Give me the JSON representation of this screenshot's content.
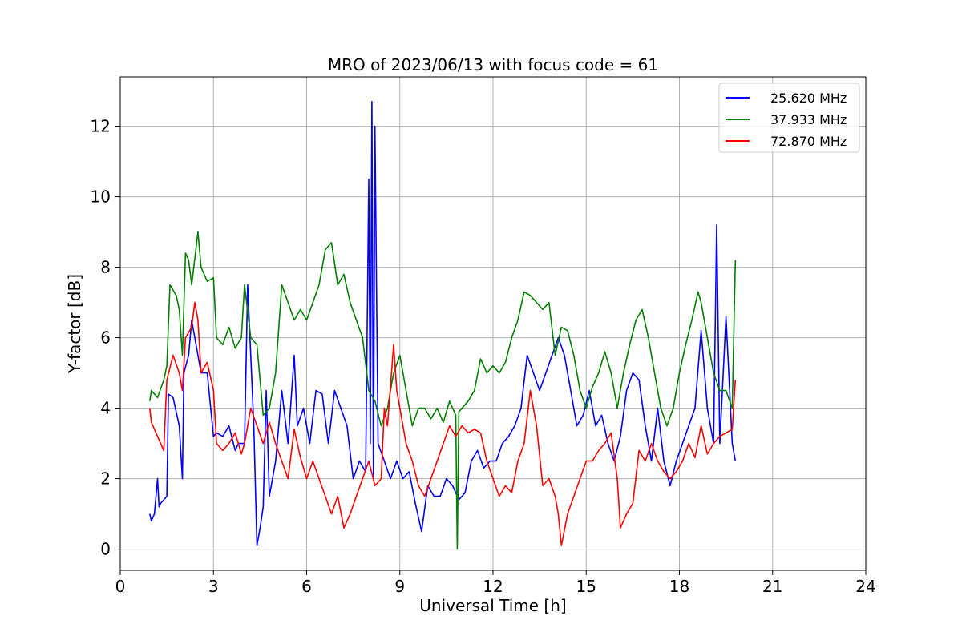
{
  "chart_data": {
    "type": "line",
    "title": "MRO of 2023/06/13 with focus code = 61",
    "xlabel": "Universal Time [h]",
    "ylabel": "Y-factor [dB]",
    "xlim": [
      0,
      24
    ],
    "ylim": [
      -0.6,
      13.4
    ],
    "xticks": [
      0,
      3,
      6,
      9,
      12,
      15,
      18,
      21,
      24
    ],
    "yticks": [
      0,
      2,
      4,
      6,
      8,
      10,
      12
    ],
    "grid": true,
    "legend": {
      "position": "upper right"
    },
    "series": [
      {
        "name": "25.620 MHz",
        "color": "#0000ff",
        "x": [
          0.95,
          1.0,
          1.1,
          1.2,
          1.25,
          1.3,
          1.5,
          1.55,
          1.7,
          1.9,
          2.0,
          2.05,
          2.2,
          2.3,
          2.5,
          2.6,
          2.8,
          3.0,
          3.1,
          3.3,
          3.5,
          3.7,
          3.8,
          4.0,
          4.1,
          4.3,
          4.4,
          4.5,
          4.6,
          4.7,
          4.8,
          5.0,
          5.2,
          5.4,
          5.6,
          5.7,
          5.9,
          6.1,
          6.3,
          6.5,
          6.7,
          6.9,
          7.1,
          7.3,
          7.5,
          7.7,
          7.9,
          8.0,
          8.05,
          8.1,
          8.15,
          8.2,
          8.3,
          8.5,
          8.7,
          8.9,
          9.1,
          9.3,
          9.5,
          9.7,
          9.9,
          10.1,
          10.3,
          10.5,
          10.7,
          10.9,
          11.1,
          11.3,
          11.5,
          11.7,
          11.9,
          12.1,
          12.3,
          12.5,
          12.7,
          12.9,
          13.1,
          13.3,
          13.5,
          13.7,
          13.9,
          14.1,
          14.3,
          14.5,
          14.7,
          14.9,
          15.1,
          15.3,
          15.5,
          15.7,
          15.9,
          16.1,
          16.3,
          16.5,
          16.7,
          16.9,
          17.1,
          17.3,
          17.5,
          17.7,
          17.9,
          18.1,
          18.3,
          18.5,
          18.7,
          18.9,
          19.1,
          19.2,
          19.3,
          19.5,
          19.7,
          19.8
        ],
        "y": [
          1.0,
          0.8,
          1.0,
          2.0,
          1.2,
          1.3,
          1.5,
          4.4,
          4.3,
          3.5,
          2.0,
          5.0,
          5.5,
          6.5,
          5.5,
          5.0,
          5.0,
          3.2,
          3.3,
          3.2,
          3.5,
          2.8,
          3.0,
          3.0,
          7.5,
          3.5,
          0.1,
          0.6,
          1.2,
          4.5,
          1.5,
          2.5,
          4.5,
          3.0,
          5.5,
          3.5,
          4.0,
          3.0,
          4.5,
          4.4,
          3.0,
          4.5,
          4.0,
          3.5,
          2.0,
          2.5,
          2.2,
          10.5,
          3.0,
          12.7,
          2.0,
          12.0,
          3.0,
          2.5,
          2.0,
          2.5,
          2.0,
          2.2,
          1.3,
          0.5,
          1.8,
          1.5,
          1.5,
          2.0,
          1.8,
          1.4,
          1.6,
          2.5,
          2.8,
          2.3,
          2.5,
          2.5,
          3.0,
          3.2,
          3.5,
          4.0,
          5.5,
          5.0,
          4.5,
          5.0,
          5.5,
          6.0,
          5.5,
          4.5,
          3.5,
          3.8,
          4.5,
          3.5,
          3.8,
          3.0,
          2.5,
          3.2,
          4.5,
          5.0,
          4.8,
          3.5,
          2.5,
          4.0,
          2.5,
          1.8,
          2.5,
          3.0,
          3.5,
          4.0,
          6.2,
          4.0,
          3.0,
          9.2,
          3.0,
          6.6,
          3.0,
          2.5
        ]
      },
      {
        "name": "37.933 MHz",
        "color": "#008000",
        "x": [
          0.95,
          1.0,
          1.2,
          1.4,
          1.5,
          1.6,
          1.8,
          1.9,
          2.0,
          2.1,
          2.2,
          2.3,
          2.5,
          2.6,
          2.8,
          3.0,
          3.1,
          3.3,
          3.5,
          3.7,
          3.9,
          4.0,
          4.2,
          4.4,
          4.6,
          4.8,
          5.0,
          5.2,
          5.4,
          5.6,
          5.8,
          6.0,
          6.2,
          6.4,
          6.6,
          6.8,
          7.0,
          7.2,
          7.4,
          7.6,
          7.8,
          8.0,
          8.2,
          8.4,
          8.6,
          8.8,
          9.0,
          9.2,
          9.4,
          9.6,
          9.8,
          10.0,
          10.2,
          10.4,
          10.6,
          10.8,
          10.85,
          10.9,
          11.0,
          11.2,
          11.4,
          11.6,
          11.8,
          12.0,
          12.2,
          12.4,
          12.6,
          12.8,
          13.0,
          13.2,
          13.4,
          13.6,
          13.8,
          14.0,
          14.2,
          14.4,
          14.6,
          14.8,
          15.0,
          15.2,
          15.4,
          15.6,
          15.8,
          16.0,
          16.2,
          16.4,
          16.6,
          16.8,
          17.0,
          17.2,
          17.4,
          17.6,
          17.8,
          18.0,
          18.2,
          18.4,
          18.6,
          18.7,
          18.9,
          19.1,
          19.3,
          19.5,
          19.7,
          19.8
        ],
        "y": [
          4.2,
          4.5,
          4.3,
          4.8,
          5.2,
          7.5,
          7.2,
          6.8,
          5.5,
          8.4,
          8.2,
          7.5,
          9.0,
          8.0,
          7.6,
          7.7,
          6.0,
          5.8,
          6.3,
          5.7,
          6.0,
          7.5,
          6.0,
          5.8,
          3.8,
          4.0,
          5.0,
          7.5,
          7.0,
          6.5,
          6.8,
          6.5,
          7.0,
          7.5,
          8.5,
          8.7,
          7.5,
          7.8,
          7.0,
          6.5,
          6.0,
          4.5,
          4.2,
          3.5,
          4.0,
          5.0,
          5.5,
          4.5,
          3.5,
          4.0,
          4.0,
          3.7,
          4.0,
          3.6,
          4.2,
          3.8,
          0.0,
          3.9,
          4.0,
          4.2,
          4.5,
          5.4,
          5.0,
          5.2,
          5.0,
          5.3,
          6.0,
          6.5,
          7.3,
          7.2,
          7.0,
          6.8,
          7.0,
          5.5,
          6.3,
          6.2,
          5.5,
          4.5,
          4.0,
          4.6,
          5.0,
          5.6,
          5.0,
          4.0,
          5.0,
          5.8,
          6.5,
          6.8,
          6.0,
          5.0,
          4.0,
          3.5,
          4.0,
          5.0,
          5.8,
          6.5,
          7.3,
          7.0,
          6.0,
          5.0,
          4.5,
          4.5,
          4.0,
          8.2
        ]
      },
      {
        "name": "72.870 MHz",
        "color": "#ff0000",
        "x": [
          0.95,
          1.0,
          1.2,
          1.4,
          1.5,
          1.7,
          1.9,
          2.0,
          2.1,
          2.3,
          2.4,
          2.5,
          2.6,
          2.8,
          3.0,
          3.1,
          3.3,
          3.5,
          3.7,
          3.9,
          4.0,
          4.2,
          4.4,
          4.6,
          4.8,
          5.0,
          5.2,
          5.4,
          5.6,
          5.8,
          6.0,
          6.2,
          6.4,
          6.6,
          6.8,
          7.0,
          7.2,
          7.4,
          7.6,
          7.8,
          8.0,
          8.2,
          8.4,
          8.5,
          8.6,
          8.8,
          8.9,
          9.0,
          9.2,
          9.4,
          9.6,
          9.8,
          10.0,
          10.2,
          10.4,
          10.6,
          10.8,
          11.0,
          11.2,
          11.4,
          11.6,
          11.8,
          12.0,
          12.2,
          12.4,
          12.6,
          12.8,
          13.0,
          13.2,
          13.4,
          13.6,
          13.8,
          14.0,
          14.1,
          14.2,
          14.4,
          14.6,
          14.8,
          15.0,
          15.2,
          15.4,
          15.6,
          15.8,
          16.0,
          16.1,
          16.3,
          16.5,
          16.7,
          16.9,
          17.1,
          17.3,
          17.5,
          17.7,
          17.9,
          18.1,
          18.3,
          18.5,
          18.7,
          18.9,
          19.1,
          19.3,
          19.5,
          19.7,
          19.8
        ],
        "y": [
          4.0,
          3.6,
          3.2,
          2.8,
          4.8,
          5.5,
          5.0,
          4.5,
          6.0,
          6.3,
          7.0,
          6.5,
          5.0,
          5.3,
          4.5,
          3.0,
          2.8,
          3.0,
          3.3,
          2.7,
          3.0,
          4.0,
          3.5,
          3.0,
          3.6,
          3.0,
          2.5,
          2.0,
          3.4,
          2.6,
          2.0,
          2.5,
          2.0,
          1.5,
          1.0,
          1.5,
          0.6,
          1.0,
          1.5,
          2.0,
          2.5,
          1.8,
          2.0,
          4.0,
          3.5,
          5.8,
          4.5,
          4.0,
          3.0,
          2.5,
          1.8,
          1.5,
          2.0,
          2.5,
          3.0,
          3.5,
          3.2,
          3.5,
          3.3,
          3.4,
          3.3,
          2.5,
          2.0,
          1.5,
          1.8,
          1.6,
          2.5,
          3.0,
          4.5,
          3.5,
          1.8,
          2.0,
          1.5,
          1.0,
          0.1,
          1.0,
          1.5,
          2.0,
          2.5,
          2.5,
          2.8,
          3.0,
          3.3,
          2.0,
          0.6,
          1.0,
          1.3,
          2.8,
          2.5,
          3.0,
          2.5,
          2.2,
          2.0,
          2.2,
          2.5,
          3.0,
          2.6,
          3.5,
          2.7,
          3.0,
          3.2,
          3.3,
          3.4,
          4.8
        ]
      }
    ]
  }
}
